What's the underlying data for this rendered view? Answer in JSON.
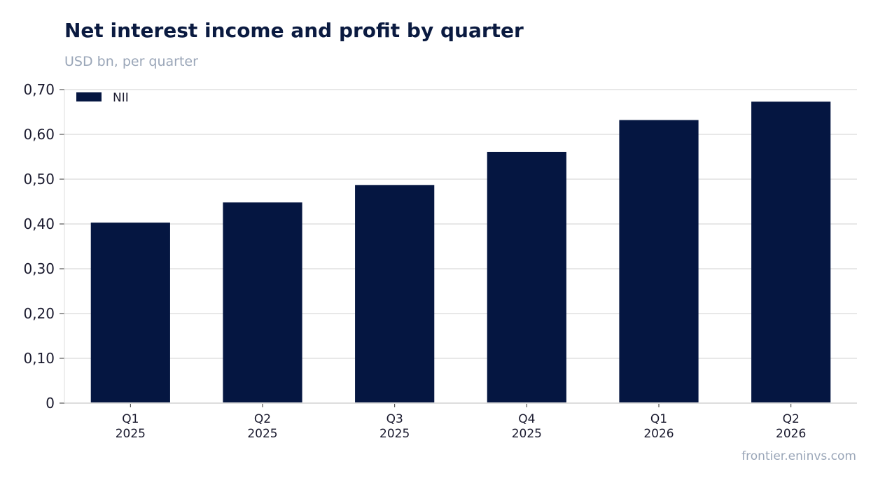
{
  "header": {
    "title": "Net interest income and profit by quarter",
    "subtitle": "USD bn, per quarter"
  },
  "footer": {
    "source": "frontier.eninvs.com"
  },
  "colors": {
    "nii": "#051641",
    "grid": "#e8e8e8",
    "axis": "#dddddd"
  },
  "chart_data": {
    "type": "bar",
    "title": "Net interest income and profit by quarter",
    "subtitle": "USD bn, per quarter",
    "categories": [
      [
        "Q1",
        "2025"
      ],
      [
        "Q2",
        "2025"
      ],
      [
        "Q3",
        "2025"
      ],
      [
        "Q4",
        "2025"
      ],
      [
        "Q1",
        "2026"
      ],
      [
        "Q2",
        "2026"
      ]
    ],
    "series": [
      {
        "name": "NII",
        "color": "#051641",
        "values": [
          0.403,
          0.448,
          0.487,
          0.561,
          0.632,
          0.673
        ]
      }
    ],
    "ylim": [
      0,
      0.7
    ],
    "yticks": [
      0,
      0.1,
      0.2,
      0.3,
      0.4,
      0.5,
      0.6,
      0.7
    ],
    "ytick_labels": [
      "0",
      "0,10",
      "0,20",
      "0,30",
      "0,40",
      "0,50",
      "0,60",
      "0,70"
    ],
    "grid": true,
    "legend": "top-left"
  }
}
